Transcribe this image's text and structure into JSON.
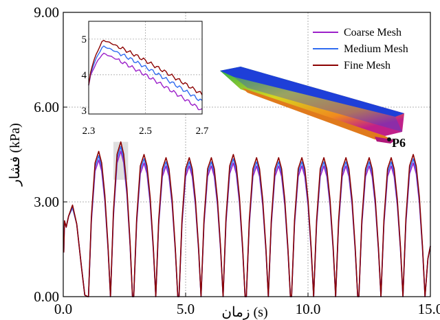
{
  "chart_data": {
    "type": "line",
    "xlabel": "زمان (s)",
    "ylabel": "فشار (kPa)",
    "xlim": [
      0,
      15
    ],
    "ylim": [
      0,
      9
    ],
    "x_ticks": [
      "0.0",
      "5.0",
      "10.0",
      "15.0"
    ],
    "y_ticks": [
      "0.00",
      "3.00",
      "6.00",
      "9.00"
    ],
    "grid": true,
    "legend_position": "top-right",
    "colors": {
      "coarse": "#9b1fc9",
      "medium": "#2f6bf0",
      "fine": "#8b0000",
      "grid": "#999999"
    },
    "series": [
      {
        "name": "Coarse Mesh",
        "color": "#9b1fc9",
        "peak_scale": 0.94
      },
      {
        "name": "Medium Mesh",
        "color": "#2f6bf0",
        "peak_scale": 0.97
      },
      {
        "name": "Fine Mesh",
        "color": "#8b0000",
        "peak_scale": 1.0
      }
    ],
    "peaks": [
      {
        "t": 0.38,
        "p": 2.9
      },
      {
        "t": 1.45,
        "p": 4.6
      },
      {
        "t": 2.35,
        "p": 4.9
      },
      {
        "t": 3.3,
        "p": 4.5
      },
      {
        "t": 4.2,
        "p": 4.4
      },
      {
        "t": 5.15,
        "p": 4.4
      },
      {
        "t": 6.05,
        "p": 4.4
      },
      {
        "t": 6.95,
        "p": 4.5
      },
      {
        "t": 7.9,
        "p": 4.4
      },
      {
        "t": 8.8,
        "p": 4.4
      },
      {
        "t": 9.75,
        "p": 4.4
      },
      {
        "t": 10.65,
        "p": 4.4
      },
      {
        "t": 11.55,
        "p": 4.4
      },
      {
        "t": 12.5,
        "p": 4.4
      },
      {
        "t": 13.4,
        "p": 4.4
      },
      {
        "t": 14.3,
        "p": 4.5
      }
    ],
    "inset": {
      "xlim": [
        2.3,
        2.7
      ],
      "ylim": [
        2.9,
        5.5
      ],
      "x_ticks": [
        "2.3",
        "2.5",
        "2.7"
      ],
      "y_ticks": [
        "3",
        "4",
        "5"
      ],
      "series_peaks": [
        4.6,
        4.8,
        4.97
      ],
      "series_ends": [
        3.0,
        3.25,
        3.45
      ]
    },
    "highlight_region": {
      "x": [
        2.05,
        2.65
      ],
      "y": [
        3.7,
        4.9
      ]
    },
    "annotations": [
      "P6"
    ]
  }
}
